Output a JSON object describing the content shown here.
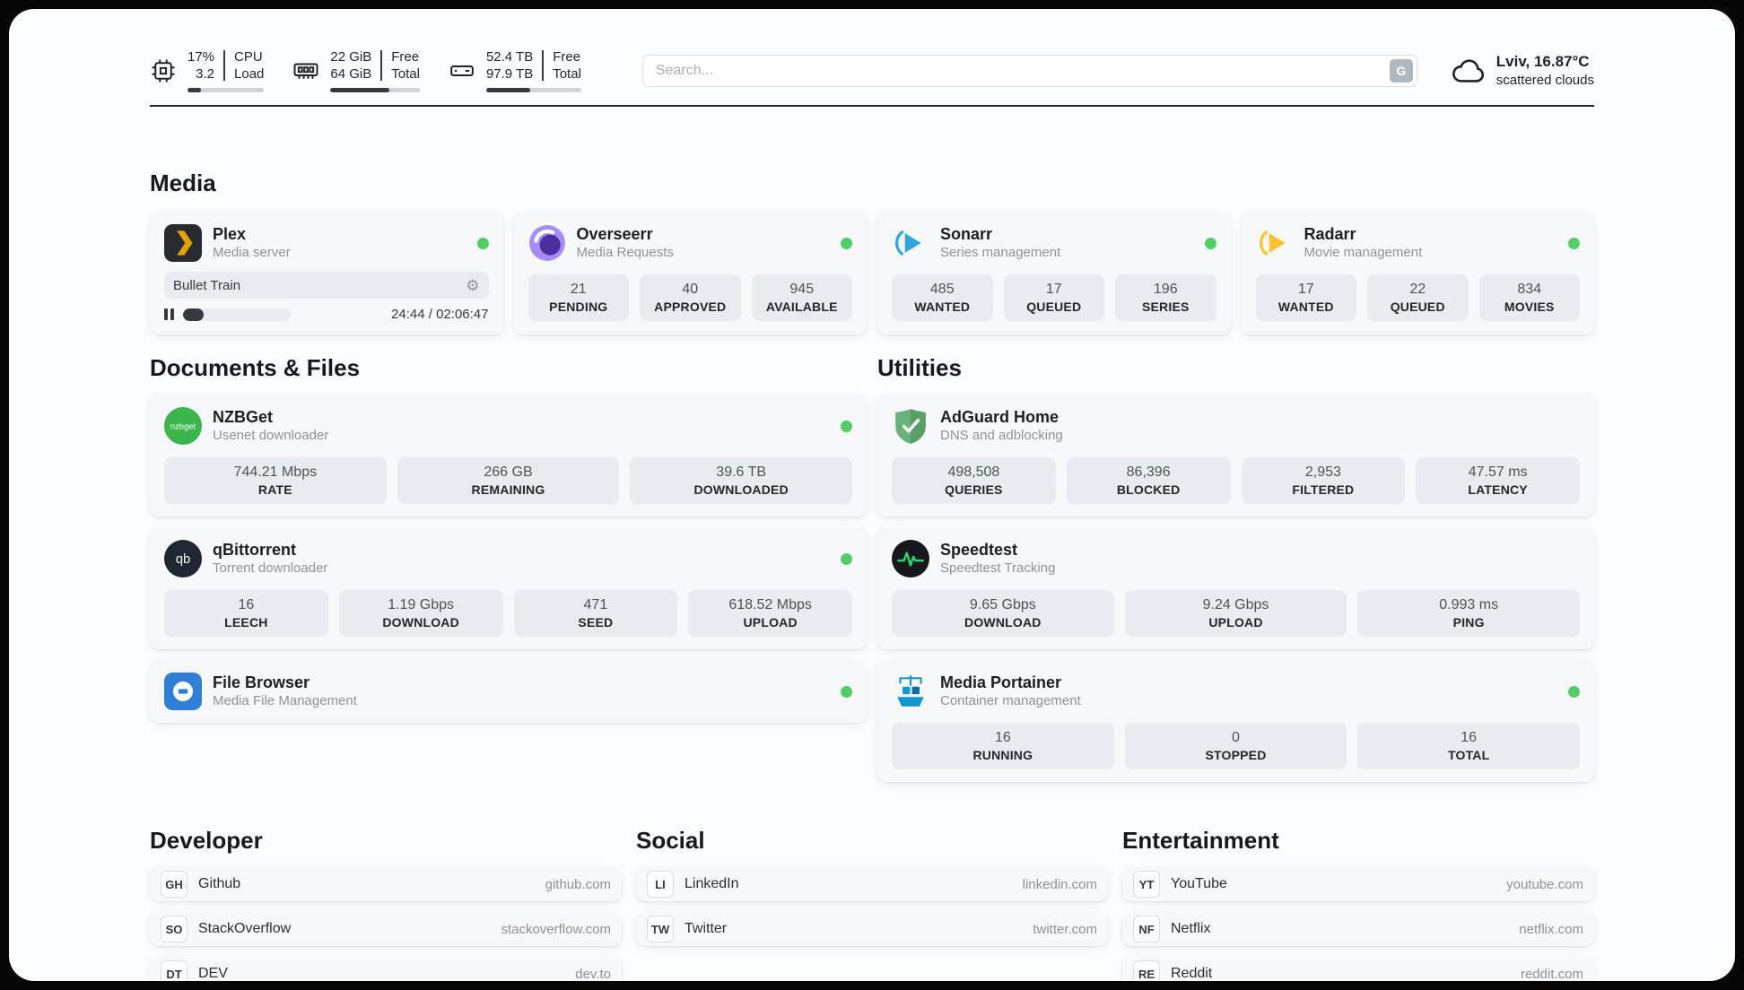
{
  "topbar": {
    "cpu": {
      "value": "17%",
      "sub": "3.2",
      "label1": "CPU",
      "label2": "Load",
      "progress": 17
    },
    "ram": {
      "value": "22 GiB",
      "sub": "64 GiB",
      "label1": "Free",
      "label2": "Total",
      "progress": 66
    },
    "disk": {
      "value": "52.4 TB",
      "sub": "97.9 TB",
      "label1": "Free",
      "label2": "Total",
      "progress": 46
    },
    "search": {
      "placeholder": "Search...",
      "button": "G"
    },
    "weather": {
      "location": "Lviv, 16.87°C",
      "condition": "scattered clouds"
    }
  },
  "colors": {
    "online_dot": "#51cf66"
  },
  "sections": {
    "media": {
      "title": "Media",
      "plex": {
        "name": "Plex",
        "desc": "Media server",
        "player_title": "Bullet Train",
        "player_time": "24:44 / 02:06:47",
        "progress": 19
      },
      "overseerr": {
        "name": "Overseerr",
        "desc": "Media Requests",
        "stats": [
          {
            "value": "21",
            "label": "PENDING"
          },
          {
            "value": "40",
            "label": "APPROVED"
          },
          {
            "value": "945",
            "label": "AVAILABLE"
          }
        ]
      },
      "sonarr": {
        "name": "Sonarr",
        "desc": "Series management",
        "stats": [
          {
            "value": "485",
            "label": "WANTED"
          },
          {
            "value": "17",
            "label": "QUEUED"
          },
          {
            "value": "196",
            "label": "SERIES"
          }
        ]
      },
      "radarr": {
        "name": "Radarr",
        "desc": "Movie management",
        "stats": [
          {
            "value": "17",
            "label": "WANTED"
          },
          {
            "value": "22",
            "label": "QUEUED"
          },
          {
            "value": "834",
            "label": "MOVIES"
          }
        ]
      }
    },
    "documents": {
      "title": "Documents & Files",
      "nzbget": {
        "name": "NZBGet",
        "desc": "Usenet downloader",
        "stats": [
          {
            "value": "744.21 Mbps",
            "label": "RATE"
          },
          {
            "value": "266 GB",
            "label": "REMAINING"
          },
          {
            "value": "39.6 TB",
            "label": "DOWNLOADED"
          }
        ]
      },
      "qbittorrent": {
        "name": "qBittorrent",
        "desc": "Torrent downloader",
        "stats": [
          {
            "value": "16",
            "label": "LEECH"
          },
          {
            "value": "1.19 Gbps",
            "label": "DOWNLOAD"
          },
          {
            "value": "471",
            "label": "SEED"
          },
          {
            "value": "618.52 Mbps",
            "label": "UPLOAD"
          }
        ]
      },
      "filebrowser": {
        "name": "File Browser",
        "desc": "Media File Management"
      }
    },
    "utilities": {
      "title": "Utilities",
      "adguard": {
        "name": "AdGuard Home",
        "desc": "DNS and adblocking",
        "stats": [
          {
            "value": "498,508",
            "label": "QUERIES"
          },
          {
            "value": "86,396",
            "label": "BLOCKED"
          },
          {
            "value": "2,953",
            "label": "FILTERED"
          },
          {
            "value": "47.57 ms",
            "label": "LATENCY"
          }
        ]
      },
      "speedtest": {
        "name": "Speedtest",
        "desc": "Speedtest Tracking",
        "stats": [
          {
            "value": "9.65 Gbps",
            "label": "DOWNLOAD"
          },
          {
            "value": "9.24 Gbps",
            "label": "UPLOAD"
          },
          {
            "value": "0.993 ms",
            "label": "PING"
          }
        ]
      },
      "portainer": {
        "name": "Media Portainer",
        "desc": "Container management",
        "stats": [
          {
            "value": "16",
            "label": "RUNNING"
          },
          {
            "value": "0",
            "label": "STOPPED"
          },
          {
            "value": "16",
            "label": "TOTAL"
          }
        ]
      }
    },
    "bookmarks": {
      "developer": {
        "title": "Developer",
        "items": [
          {
            "badge": "GH",
            "name": "Github",
            "url": "github.com"
          },
          {
            "badge": "SO",
            "name": "StackOverflow",
            "url": "stackoverflow.com"
          },
          {
            "badge": "DT",
            "name": "DEV",
            "url": "dev.to"
          }
        ]
      },
      "social": {
        "title": "Social",
        "items": [
          {
            "badge": "LI",
            "name": "LinkedIn",
            "url": "linkedin.com"
          },
          {
            "badge": "TW",
            "name": "Twitter",
            "url": "twitter.com"
          }
        ]
      },
      "entertainment": {
        "title": "Entertainment",
        "items": [
          {
            "badge": "YT",
            "name": "YouTube",
            "url": "youtube.com"
          },
          {
            "badge": "NF",
            "name": "Netflix",
            "url": "netflix.com"
          },
          {
            "badge": "RE",
            "name": "Reddit",
            "url": "reddit.com"
          }
        ]
      }
    }
  }
}
